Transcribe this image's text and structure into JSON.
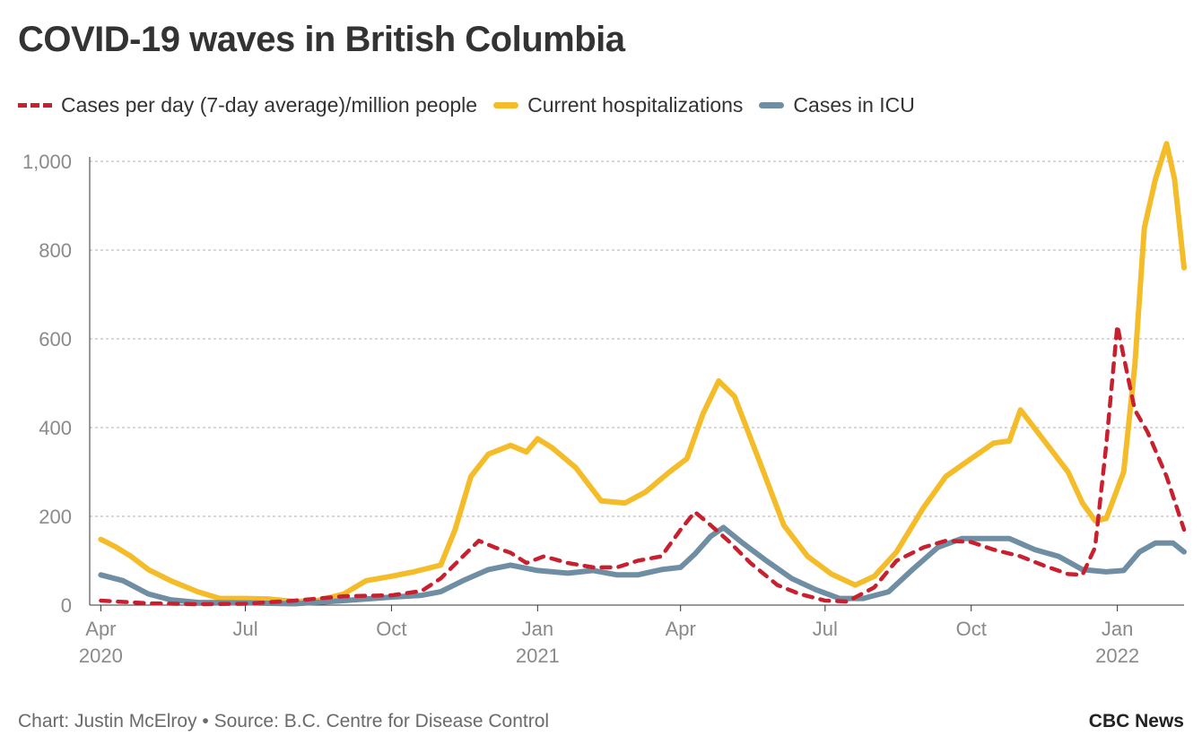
{
  "header": {
    "title": "COVID-19 waves in British Columbia"
  },
  "legend": [
    {
      "label": "Cases per day (7-day average)/million people",
      "color": "#c8202e",
      "style": "dashed"
    },
    {
      "label": "Current hospitalizations",
      "color": "#f5bc2a",
      "style": "solid"
    },
    {
      "label": "Cases in ICU",
      "color": "#6f8ea3",
      "style": "solid"
    }
  ],
  "footer": {
    "credit": "Chart: Justin McElroy • Source: B.C. Centre for Disease Control",
    "brand": "CBC News"
  },
  "chart_data": {
    "type": "line",
    "title": "COVID-19 waves in British Columbia",
    "xlabel": "",
    "ylabel": "",
    "ylim": [
      0,
      1000
    ],
    "xlim": [
      "2020-03-25",
      "2022-02-12"
    ],
    "grid": true,
    "legend_position": "top",
    "y_ticks": [
      {
        "value": 0,
        "label": "0"
      },
      {
        "value": 200,
        "label": "200"
      },
      {
        "value": 400,
        "label": "400"
      },
      {
        "value": 600,
        "label": "600"
      },
      {
        "value": 800,
        "label": "800"
      },
      {
        "value": 1000,
        "label": "1,000"
      }
    ],
    "x_ticks": [
      {
        "date": "2020-04-01",
        "label": "Apr",
        "year": "2020"
      },
      {
        "date": "2020-07-01",
        "label": "Jul",
        "year": ""
      },
      {
        "date": "2020-10-01",
        "label": "Oct",
        "year": ""
      },
      {
        "date": "2021-01-01",
        "label": "Jan",
        "year": "2021"
      },
      {
        "date": "2021-04-01",
        "label": "Apr",
        "year": ""
      },
      {
        "date": "2021-07-01",
        "label": "Jul",
        "year": ""
      },
      {
        "date": "2021-10-01",
        "label": "Oct",
        "year": ""
      },
      {
        "date": "2022-01-01",
        "label": "Jan",
        "year": "2022"
      }
    ],
    "series": [
      {
        "name": "Cases per day (7-day average)/million people",
        "color": "#c8202e",
        "style": "dashed",
        "points": [
          [
            "2020-04-01",
            10
          ],
          [
            "2020-05-01",
            4
          ],
          [
            "2020-06-01",
            2
          ],
          [
            "2020-07-01",
            3
          ],
          [
            "2020-08-01",
            10
          ],
          [
            "2020-09-01",
            20
          ],
          [
            "2020-10-01",
            22
          ],
          [
            "2020-10-20",
            32
          ],
          [
            "2020-11-01",
            60
          ],
          [
            "2020-11-15",
            110
          ],
          [
            "2020-11-25",
            145
          ],
          [
            "2020-12-05",
            130
          ],
          [
            "2020-12-15",
            118
          ],
          [
            "2020-12-25",
            95
          ],
          [
            "2021-01-05",
            110
          ],
          [
            "2021-01-20",
            95
          ],
          [
            "2021-02-05",
            85
          ],
          [
            "2021-02-20",
            85
          ],
          [
            "2021-03-05",
            100
          ],
          [
            "2021-03-20",
            110
          ],
          [
            "2021-04-01",
            170
          ],
          [
            "2021-04-10",
            210
          ],
          [
            "2021-04-20",
            180
          ],
          [
            "2021-05-01",
            145
          ],
          [
            "2021-05-15",
            95
          ],
          [
            "2021-06-01",
            45
          ],
          [
            "2021-06-15",
            25
          ],
          [
            "2021-07-01",
            10
          ],
          [
            "2021-07-15",
            8
          ],
          [
            "2021-08-01",
            40
          ],
          [
            "2021-08-15",
            100
          ],
          [
            "2021-09-01",
            130
          ],
          [
            "2021-09-15",
            145
          ],
          [
            "2021-10-01",
            142
          ],
          [
            "2021-10-15",
            125
          ],
          [
            "2021-11-01",
            110
          ],
          [
            "2021-11-15",
            90
          ],
          [
            "2021-12-01",
            70
          ],
          [
            "2021-12-10",
            68
          ],
          [
            "2021-12-18",
            130
          ],
          [
            "2021-12-25",
            360
          ],
          [
            "2022-01-01",
            630
          ],
          [
            "2022-01-05",
            560
          ],
          [
            "2022-01-12",
            440
          ],
          [
            "2022-01-20",
            390
          ],
          [
            "2022-02-01",
            290
          ],
          [
            "2022-02-12",
            170
          ]
        ]
      },
      {
        "name": "Current hospitalizations",
        "color": "#f5bc2a",
        "style": "solid",
        "points": [
          [
            "2020-04-01",
            148
          ],
          [
            "2020-04-10",
            132
          ],
          [
            "2020-04-20",
            110
          ],
          [
            "2020-05-01",
            80
          ],
          [
            "2020-05-15",
            55
          ],
          [
            "2020-06-01",
            30
          ],
          [
            "2020-06-15",
            15
          ],
          [
            "2020-07-01",
            15
          ],
          [
            "2020-07-15",
            14
          ],
          [
            "2020-08-01",
            8
          ],
          [
            "2020-08-15",
            10
          ],
          [
            "2020-09-01",
            25
          ],
          [
            "2020-09-15",
            55
          ],
          [
            "2020-10-01",
            65
          ],
          [
            "2020-10-15",
            75
          ],
          [
            "2020-11-01",
            90
          ],
          [
            "2020-11-10",
            170
          ],
          [
            "2020-11-20",
            290
          ],
          [
            "2020-12-01",
            340
          ],
          [
            "2020-12-15",
            360
          ],
          [
            "2020-12-25",
            345
          ],
          [
            "2021-01-01",
            375
          ],
          [
            "2021-01-10",
            355
          ],
          [
            "2021-01-25",
            310
          ],
          [
            "2021-02-10",
            235
          ],
          [
            "2021-02-25",
            230
          ],
          [
            "2021-03-10",
            255
          ],
          [
            "2021-03-25",
            300
          ],
          [
            "2021-04-05",
            330
          ],
          [
            "2021-04-15",
            430
          ],
          [
            "2021-04-25",
            505
          ],
          [
            "2021-05-05",
            470
          ],
          [
            "2021-05-20",
            330
          ],
          [
            "2021-06-05",
            180
          ],
          [
            "2021-06-20",
            110
          ],
          [
            "2021-07-05",
            70
          ],
          [
            "2021-07-20",
            45
          ],
          [
            "2021-08-01",
            65
          ],
          [
            "2021-08-15",
            120
          ],
          [
            "2021-09-01",
            220
          ],
          [
            "2021-09-15",
            290
          ],
          [
            "2021-10-01",
            330
          ],
          [
            "2021-10-15",
            365
          ],
          [
            "2021-10-25",
            370
          ],
          [
            "2021-11-01",
            440
          ],
          [
            "2021-11-15",
            375
          ],
          [
            "2021-12-01",
            300
          ],
          [
            "2021-12-10",
            230
          ],
          [
            "2021-12-18",
            190
          ],
          [
            "2021-12-25",
            195
          ],
          [
            "2022-01-05",
            300
          ],
          [
            "2022-01-12",
            540
          ],
          [
            "2022-01-18",
            850
          ],
          [
            "2022-01-25",
            960
          ],
          [
            "2022-02-01",
            1040
          ],
          [
            "2022-02-06",
            960
          ],
          [
            "2022-02-12",
            760
          ]
        ]
      },
      {
        "name": "Cases in ICU",
        "color": "#6f8ea3",
        "style": "solid",
        "points": [
          [
            "2020-04-01",
            68
          ],
          [
            "2020-04-15",
            55
          ],
          [
            "2020-05-01",
            25
          ],
          [
            "2020-05-15",
            12
          ],
          [
            "2020-06-01",
            6
          ],
          [
            "2020-07-01",
            5
          ],
          [
            "2020-08-01",
            3
          ],
          [
            "2020-09-01",
            10
          ],
          [
            "2020-10-01",
            18
          ],
          [
            "2020-10-20",
            22
          ],
          [
            "2020-11-01",
            30
          ],
          [
            "2020-11-15",
            55
          ],
          [
            "2020-12-01",
            80
          ],
          [
            "2020-12-15",
            90
          ],
          [
            "2021-01-01",
            78
          ],
          [
            "2021-01-20",
            72
          ],
          [
            "2021-02-05",
            78
          ],
          [
            "2021-02-20",
            68
          ],
          [
            "2021-03-05",
            68
          ],
          [
            "2021-03-20",
            80
          ],
          [
            "2021-04-01",
            85
          ],
          [
            "2021-04-10",
            115
          ],
          [
            "2021-04-20",
            155
          ],
          [
            "2021-04-28",
            175
          ],
          [
            "2021-05-10",
            140
          ],
          [
            "2021-05-25",
            100
          ],
          [
            "2021-06-10",
            60
          ],
          [
            "2021-06-25",
            35
          ],
          [
            "2021-07-10",
            15
          ],
          [
            "2021-07-25",
            15
          ],
          [
            "2021-08-10",
            30
          ],
          [
            "2021-08-25",
            80
          ],
          [
            "2021-09-10",
            130
          ],
          [
            "2021-09-25",
            150
          ],
          [
            "2021-10-10",
            150
          ],
          [
            "2021-10-25",
            150
          ],
          [
            "2021-11-10",
            125
          ],
          [
            "2021-11-25",
            110
          ],
          [
            "2021-12-10",
            80
          ],
          [
            "2021-12-25",
            75
          ],
          [
            "2022-01-05",
            78
          ],
          [
            "2022-01-15",
            120
          ],
          [
            "2022-01-25",
            140
          ],
          [
            "2022-02-05",
            140
          ],
          [
            "2022-02-12",
            120
          ]
        ]
      }
    ]
  }
}
